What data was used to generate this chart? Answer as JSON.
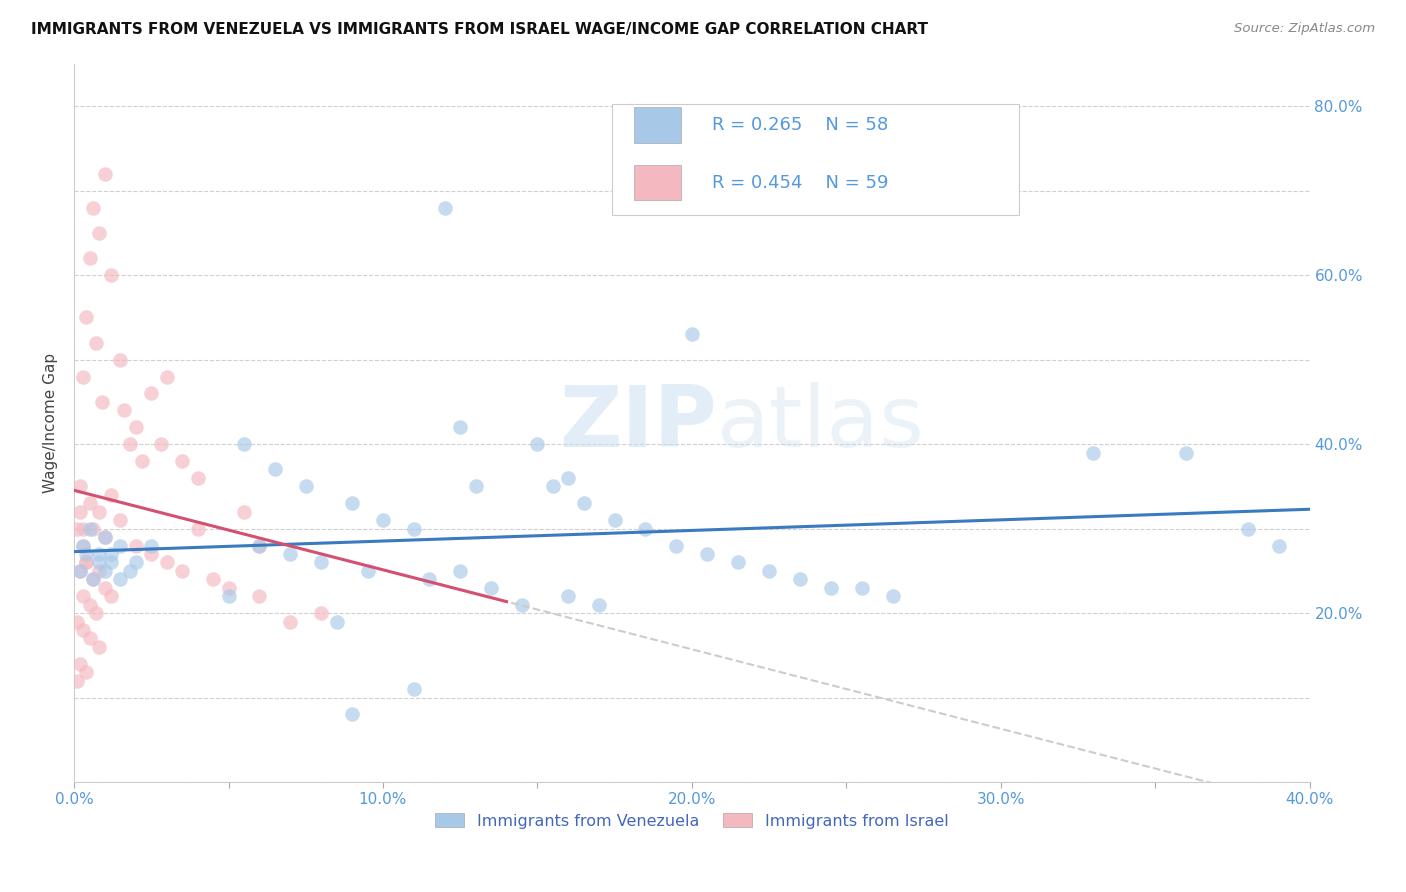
{
  "title": "IMMIGRANTS FROM VENEZUELA VS IMMIGRANTS FROM ISRAEL WAGE/INCOME GAP CORRELATION CHART",
  "source": "Source: ZipAtlas.com",
  "ylabel": "Wage/Income Gap",
  "xlim": [
    0.0,
    0.4
  ],
  "ylim": [
    0.0,
    0.85
  ],
  "color_venezuela": "#a8c8e8",
  "color_israel": "#f4b8c0",
  "color_trendline_venezuela": "#3a7abf",
  "color_trendline_israel": "#d45070",
  "color_axis_labels": "#5599dd",
  "watermark_zip": "ZIP",
  "watermark_atlas": "atlas",
  "legend_text_color": "#5599dd",
  "xtick_labels": [
    "0.0%",
    "",
    "10.0%",
    "",
    "20.0%",
    "",
    "30.0%",
    "",
    "40.0%"
  ],
  "ytick_labels_right": [
    "",
    "",
    "20.0%",
    "",
    "40.0%",
    "",
    "60.0%",
    "",
    "80.0%"
  ]
}
